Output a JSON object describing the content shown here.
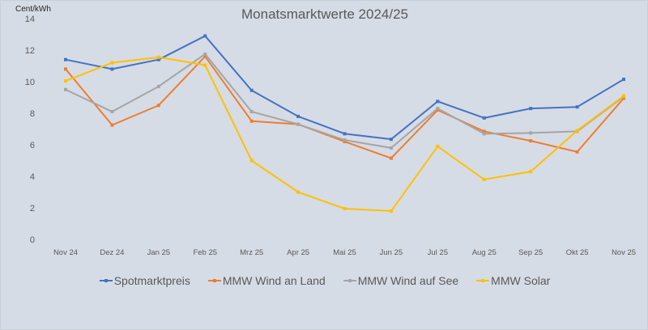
{
  "chart": {
    "title": "Monatsmarktwerte 2024/25",
    "unit_label": "Cent/kWh"
  },
  "legend": {
    "items": [
      {
        "label": "Spotmarktpreis",
        "color": "#4472c4"
      },
      {
        "label": "MMW Wind an Land",
        "color": "#ed7d31"
      },
      {
        "label": "MMW Wind auf See",
        "color": "#a5a5a5"
      },
      {
        "label": "MMW Solar",
        "color": "#ffc000"
      }
    ]
  },
  "chart_data": {
    "type": "line",
    "title": "Monatsmarktwerte 2024/25",
    "xlabel": "",
    "ylabel": "Cent/kWh",
    "ylim": [
      0,
      14
    ],
    "yticks": [
      0,
      2,
      4,
      6,
      8,
      10,
      12,
      14
    ],
    "grid": false,
    "legend_position": "bottom",
    "categories": [
      "Nov 24",
      "Dez 24",
      "Jan 25",
      "Feb 25",
      "Mrz 25",
      "Apr 25",
      "Mai 25",
      "Jun 25",
      "Jul 25",
      "Aug 25",
      "Sep 25",
      "Okt 25",
      "Nov 25"
    ],
    "series": [
      {
        "name": "Spotmarktpreis",
        "color": "#4472c4",
        "values": [
          11.4,
          10.8,
          11.4,
          12.9,
          9.45,
          7.8,
          6.7,
          6.35,
          8.75,
          7.7,
          8.3,
          8.4,
          10.15
        ]
      },
      {
        "name": "MMW Wind an Land",
        "color": "#ed7d31",
        "values": [
          10.8,
          7.25,
          8.5,
          11.6,
          7.5,
          7.3,
          6.2,
          5.15,
          8.2,
          6.85,
          6.25,
          5.55,
          8.95
        ]
      },
      {
        "name": "MMW Wind auf See",
        "color": "#a5a5a5",
        "values": [
          9.5,
          8.1,
          9.7,
          11.75,
          8.1,
          7.3,
          6.3,
          5.8,
          8.3,
          6.7,
          6.75,
          6.85,
          9.05
        ]
      },
      {
        "name": "MMW Solar",
        "color": "#ffc000",
        "values": [
          10.05,
          11.2,
          11.55,
          11.05,
          5.0,
          3.0,
          1.95,
          1.8,
          5.9,
          3.8,
          4.3,
          6.9,
          9.1
        ]
      }
    ]
  }
}
